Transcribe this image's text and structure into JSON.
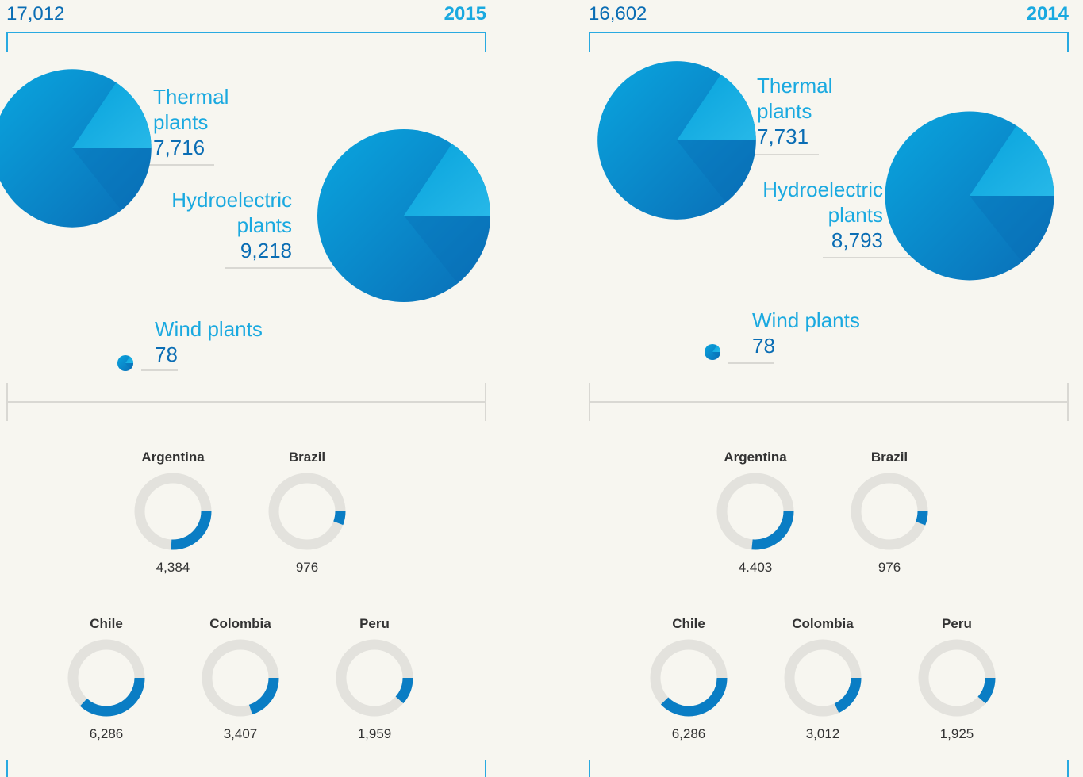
{
  "panels": [
    {
      "total": {
        "value": 17012,
        "label": "17,012"
      },
      "year": "2015",
      "plants": [
        {
          "name": "Thermal plants",
          "value": 7716,
          "label": "7,716"
        },
        {
          "name": "Hydroelectric plants",
          "value": 9218,
          "label": "9,218"
        },
        {
          "name": "Wind plants",
          "value": 78,
          "label": "78"
        }
      ],
      "countries": [
        {
          "name": "Argentina",
          "value": 4384,
          "label": "4,384"
        },
        {
          "name": "Brazil",
          "value": 976,
          "label": "976"
        },
        {
          "name": "Chile",
          "value": 6286,
          "label": "6,286"
        },
        {
          "name": "Colombia",
          "value": 3407,
          "label": "3,407"
        },
        {
          "name": "Peru",
          "value": 1959,
          "label": "1,959"
        }
      ]
    },
    {
      "total": {
        "value": 16602,
        "label": "16,602"
      },
      "year": "2014",
      "plants": [
        {
          "name": "Thermal plants",
          "value": 7731,
          "label": "7,731"
        },
        {
          "name": "Hydroelectric plants",
          "value": 8793,
          "label": "8,793"
        },
        {
          "name": "Wind plants",
          "value": 78,
          "label": "78"
        }
      ],
      "countries": [
        {
          "name": "Argentina",
          "value": 4403,
          "label": "4.403"
        },
        {
          "name": "Brazil",
          "value": 976,
          "label": "976"
        },
        {
          "name": "Chile",
          "value": 6286,
          "label": "6,286"
        },
        {
          "name": "Colombia",
          "value": 3012,
          "label": "3,012"
        },
        {
          "name": "Peru",
          "value": 1925,
          "label": "1,925"
        }
      ]
    }
  ]
}
